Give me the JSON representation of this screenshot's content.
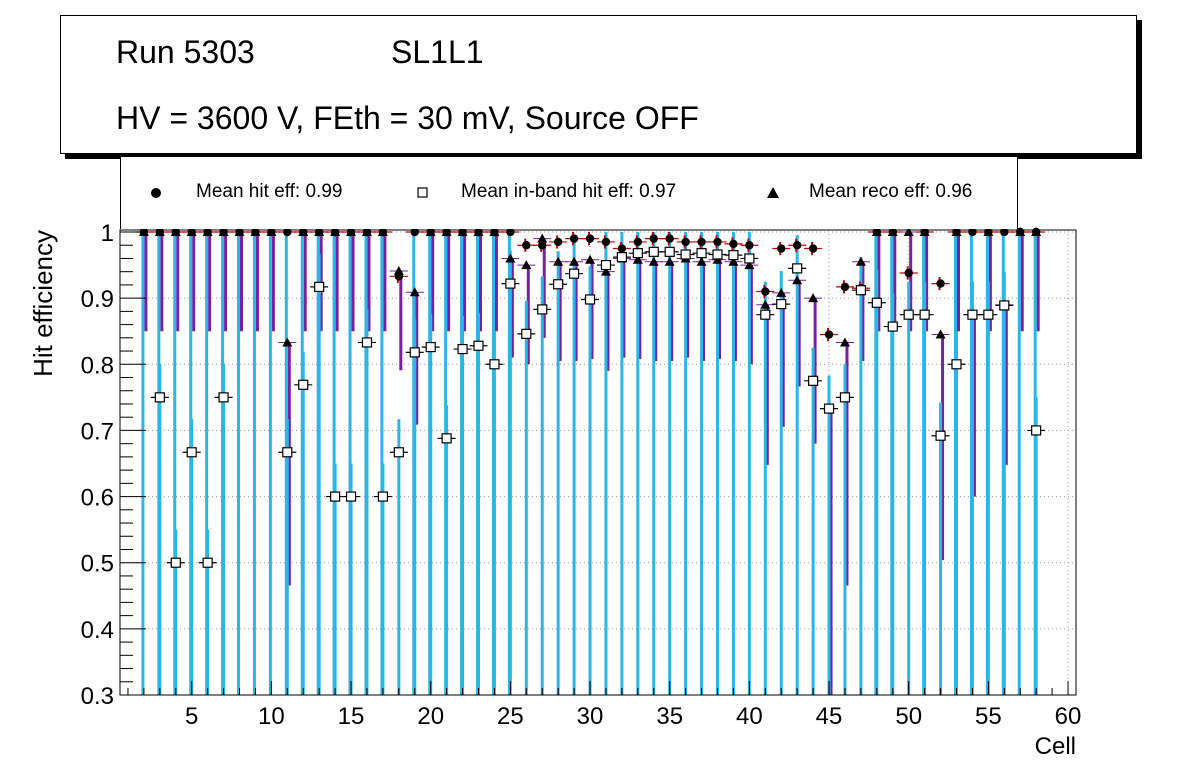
{
  "title": {
    "run": "Run 5303",
    "layer": "SL1L1",
    "conditions": "HV = 3600 V, FEth = 30 mV, Source OFF"
  },
  "legend": {
    "hit": "Mean hit  eff: 0.99",
    "inband": "Mean in-band hit eff: 0.97",
    "reco": "Mean reco eff: 0.96"
  },
  "colors": {
    "hit_marker": "#000000",
    "hit_error": "#cc0000",
    "inband_error": "#29b6e8",
    "reco_error": "#7b1fa2"
  },
  "chart_data": {
    "type": "scatter",
    "xlabel": "Cell",
    "ylabel": "Hit efficiency",
    "xlim": [
      0.5,
      60.5
    ],
    "ylim": [
      0.3,
      1.05
    ],
    "x_ticks": [
      5,
      10,
      15,
      20,
      25,
      30,
      35,
      40,
      45,
      50,
      55,
      60
    ],
    "y_ticks": [
      0.3,
      0.4,
      0.5,
      0.6,
      0.7,
      0.8,
      0.9,
      1.0
    ],
    "y_tick_labels": [
      "0.3",
      "0.4",
      "0.5",
      "0.6",
      "0.7",
      "0.8",
      "0.9",
      "1"
    ],
    "grid": true,
    "series": [
      {
        "name": "Mean hit eff",
        "marker": "circle",
        "x": [
          2,
          3,
          4,
          5,
          6,
          7,
          8,
          9,
          10,
          11,
          12,
          13,
          14,
          15,
          16,
          17,
          18,
          19,
          20,
          21,
          22,
          23,
          24,
          25,
          26,
          27,
          28,
          29,
          30,
          31,
          32,
          33,
          34,
          35,
          36,
          37,
          38,
          39,
          40,
          41,
          42,
          43,
          44,
          45,
          46,
          47,
          48,
          49,
          50,
          51,
          52,
          53,
          54,
          55,
          56,
          57,
          58
        ],
        "values": [
          1,
          1,
          1,
          1,
          1,
          1,
          1,
          1,
          1,
          1,
          1,
          1,
          1,
          1,
          1,
          1,
          0.933,
          1,
          1,
          1,
          1,
          1,
          1,
          1,
          0.98,
          0.98,
          0.985,
          0.99,
          0.99,
          0.985,
          0.975,
          0.985,
          0.99,
          0.99,
          0.985,
          0.985,
          0.985,
          0.982,
          0.98,
          0.91,
          0.975,
          0.98,
          0.975,
          0.845,
          0.917,
          0.915,
          1,
          1,
          0.938,
          1,
          0.922,
          1,
          1,
          1,
          1,
          1,
          1
        ]
      },
      {
        "name": "Mean in-band hit eff",
        "marker": "open-square",
        "x": [
          3,
          4,
          5,
          6,
          7,
          11,
          12,
          13,
          14,
          15,
          16,
          17,
          18,
          19,
          20,
          21,
          22,
          23,
          24,
          25,
          26,
          27,
          28,
          29,
          30,
          31,
          32,
          33,
          34,
          35,
          36,
          37,
          38,
          39,
          40,
          41,
          42,
          43,
          44,
          45,
          46,
          47,
          48,
          49,
          50,
          51,
          52,
          53,
          54,
          55,
          56,
          58
        ],
        "values": [
          0.75,
          0.5,
          0.667,
          0.5,
          0.75,
          0.667,
          0.769,
          0.917,
          0.6,
          0.6,
          0.833,
          0.6,
          0.667,
          0.818,
          0.826,
          0.688,
          0.823,
          0.828,
          0.8,
          0.922,
          0.846,
          0.883,
          0.921,
          0.937,
          0.898,
          0.95,
          0.962,
          0.968,
          0.97,
          0.97,
          0.966,
          0.968,
          0.966,
          0.965,
          0.96,
          0.875,
          0.891,
          0.945,
          0.775,
          0.733,
          0.75,
          0.912,
          0.893,
          0.857,
          0.875,
          0.875,
          0.692,
          0.8,
          0.875,
          0.875,
          0.889,
          0.7
        ]
      },
      {
        "name": "Mean reco eff",
        "marker": "filled-triangle",
        "x": [
          2,
          3,
          4,
          5,
          6,
          7,
          8,
          9,
          10,
          11,
          12,
          13,
          14,
          15,
          16,
          17,
          18,
          19,
          20,
          21,
          22,
          23,
          24,
          25,
          26,
          27,
          28,
          29,
          30,
          31,
          32,
          33,
          34,
          35,
          36,
          37,
          38,
          39,
          40,
          41,
          42,
          43,
          44,
          45,
          46,
          47,
          48,
          49,
          50,
          51,
          52,
          53,
          54,
          55,
          56,
          57,
          58
        ],
        "values": [
          1,
          1,
          1,
          1,
          1,
          1,
          1,
          1,
          1,
          0.833,
          1,
          1,
          1,
          1,
          1,
          1,
          0.941,
          0.909,
          1,
          1,
          1,
          1,
          1,
          0.96,
          0.95,
          0.99,
          0.955,
          0.955,
          0.958,
          0.94,
          0.96,
          0.958,
          0.955,
          0.955,
          0.96,
          0.955,
          0.958,
          0.955,
          0.95,
          0.89,
          0.908,
          0.927,
          0.9,
          0.733,
          0.833,
          0.955,
          1,
          1,
          1,
          1,
          0.845,
          1,
          0.875,
          1,
          0.89,
          1,
          1
        ]
      }
    ]
  }
}
